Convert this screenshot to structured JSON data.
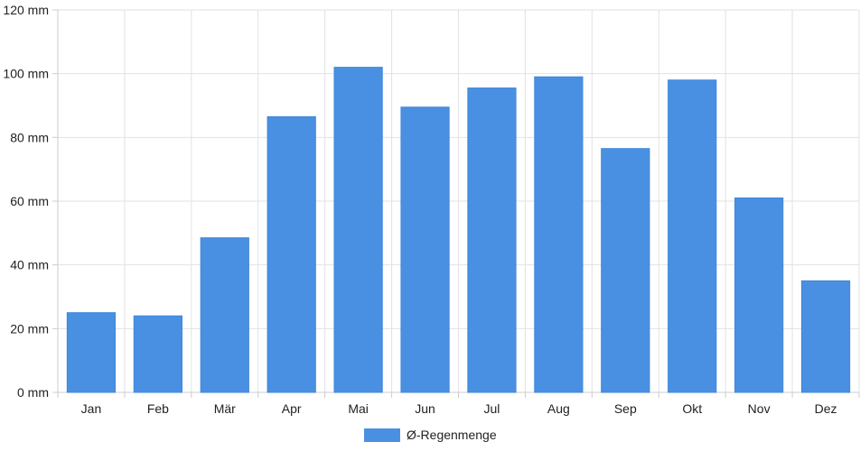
{
  "chart_data": {
    "type": "bar",
    "categories": [
      "Jan",
      "Feb",
      "Mär",
      "Apr",
      "Mai",
      "Jun",
      "Jul",
      "Aug",
      "Sep",
      "Okt",
      "Nov",
      "Dez"
    ],
    "series": [
      {
        "name": "Ø-Regenmenge",
        "values": [
          25,
          24,
          48.5,
          86.5,
          102,
          89.5,
          95.5,
          99,
          76.5,
          98,
          61,
          35
        ],
        "color": "#4a90e2"
      }
    ],
    "y_ticks": [
      0,
      20,
      40,
      60,
      80,
      100,
      120
    ],
    "y_unit": "mm",
    "ylim": [
      0,
      120
    ],
    "grid": true,
    "legend_position": "bottom-center"
  }
}
